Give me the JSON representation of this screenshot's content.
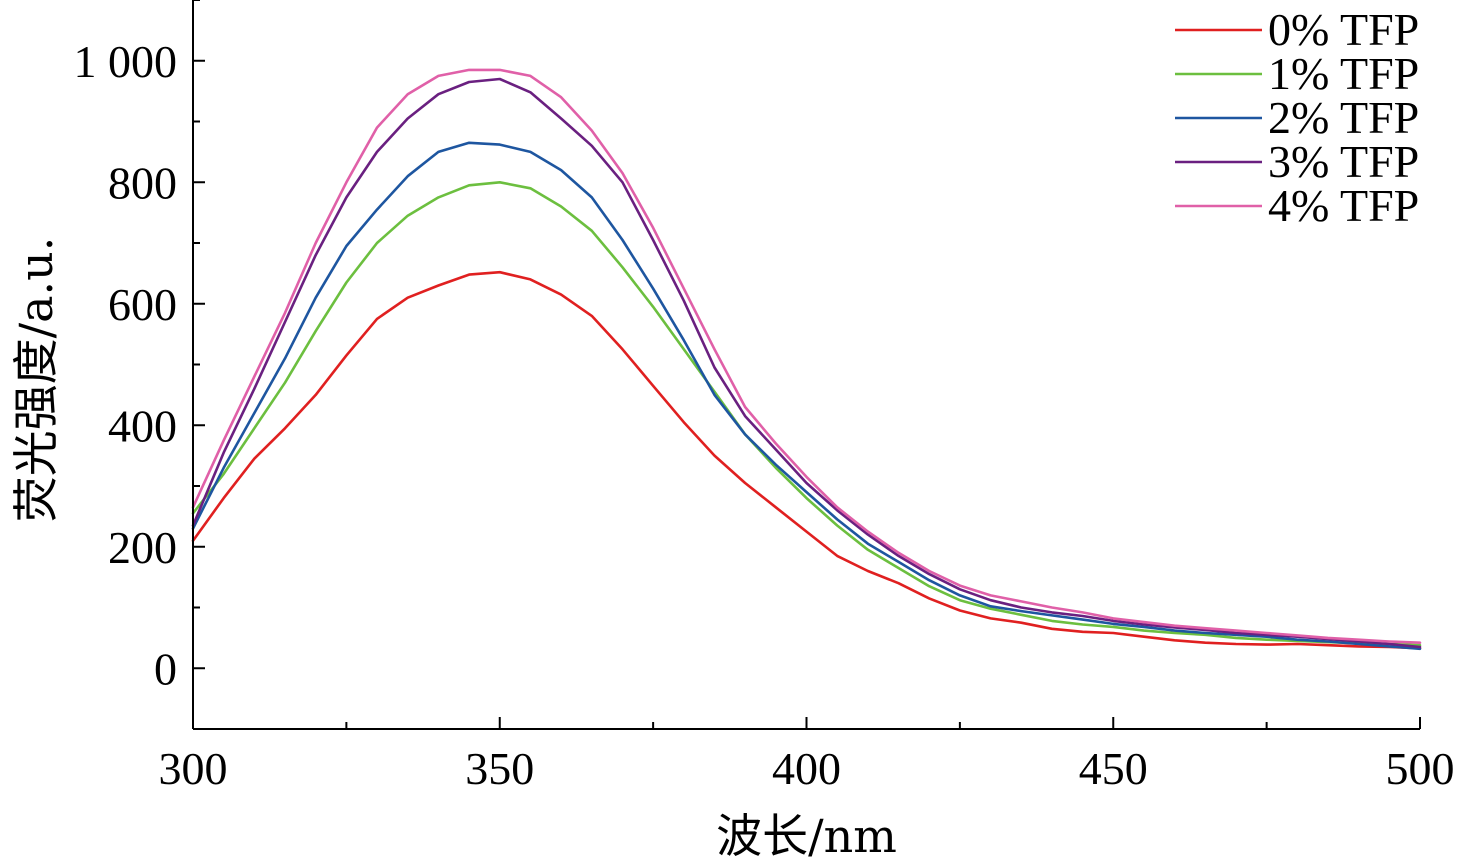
{
  "chart_data": {
    "type": "line",
    "title": "",
    "xlabel": "波长/nm",
    "ylabel": "荧光强度/a.u.",
    "xlim": [
      300,
      500
    ],
    "ylim": [
      -100,
      1100
    ],
    "xticks": [
      300,
      350,
      400,
      450,
      500
    ],
    "xtick_labels": [
      "300",
      "350",
      "400",
      "450",
      "500"
    ],
    "yticks": [
      0,
      200,
      400,
      600,
      800,
      1000
    ],
    "ytick_labels": [
      "0",
      "200",
      "400",
      "600",
      "800",
      "1 000"
    ],
    "grid": false,
    "legend_position": "top-right",
    "x": [
      300,
      305,
      310,
      315,
      320,
      325,
      330,
      335,
      340,
      345,
      350,
      355,
      360,
      365,
      370,
      375,
      380,
      385,
      390,
      395,
      400,
      405,
      410,
      415,
      420,
      425,
      430,
      435,
      440,
      445,
      450,
      455,
      460,
      465,
      470,
      475,
      480,
      485,
      490,
      495,
      500
    ],
    "series": [
      {
        "name": "0% TFP",
        "color": "#e02020",
        "values": [
          210,
          280,
          345,
          395,
          450,
          515,
          575,
          610,
          630,
          648,
          652,
          640,
          615,
          580,
          525,
          465,
          405,
          350,
          305,
          265,
          225,
          185,
          160,
          140,
          115,
          95,
          82,
          75,
          65,
          60,
          58,
          52,
          46,
          42,
          40,
          39,
          40,
          38,
          36,
          35,
          33
        ]
      },
      {
        "name": "1% TFP",
        "color": "#6cbf3f",
        "values": [
          255,
          320,
          395,
          470,
          555,
          635,
          700,
          745,
          775,
          795,
          800,
          790,
          760,
          720,
          660,
          595,
          525,
          455,
          385,
          330,
          280,
          235,
          195,
          165,
          135,
          112,
          98,
          88,
          78,
          72,
          68,
          62,
          58,
          55,
          50,
          47,
          45,
          43,
          41,
          40,
          38
        ]
      },
      {
        "name": "2% TFP",
        "color": "#1e56a0",
        "values": [
          230,
          330,
          420,
          510,
          610,
          695,
          755,
          810,
          850,
          865,
          862,
          850,
          820,
          775,
          705,
          625,
          540,
          450,
          385,
          335,
          290,
          245,
          205,
          175,
          145,
          120,
          102,
          94,
          87,
          80,
          73,
          68,
          62,
          58,
          55,
          52,
          47,
          44,
          40,
          36,
          32
        ]
      },
      {
        "name": "3% TFP",
        "color": "#6a2080",
        "values": [
          235,
          355,
          460,
          570,
          680,
          775,
          850,
          905,
          945,
          965,
          970,
          948,
          905,
          860,
          800,
          705,
          605,
          495,
          415,
          360,
          305,
          260,
          220,
          185,
          155,
          130,
          112,
          100,
          92,
          86,
          78,
          72,
          67,
          63,
          58,
          55,
          52,
          48,
          44,
          40,
          35
        ]
      },
      {
        "name": "4% TFP",
        "color": "#e060a8",
        "values": [
          265,
          375,
          480,
          585,
          700,
          800,
          890,
          945,
          975,
          985,
          985,
          975,
          940,
          885,
          815,
          725,
          625,
          525,
          430,
          370,
          315,
          265,
          225,
          190,
          160,
          136,
          120,
          110,
          100,
          92,
          82,
          76,
          70,
          66,
          62,
          58,
          54,
          50,
          47,
          44,
          42
        ]
      }
    ]
  }
}
